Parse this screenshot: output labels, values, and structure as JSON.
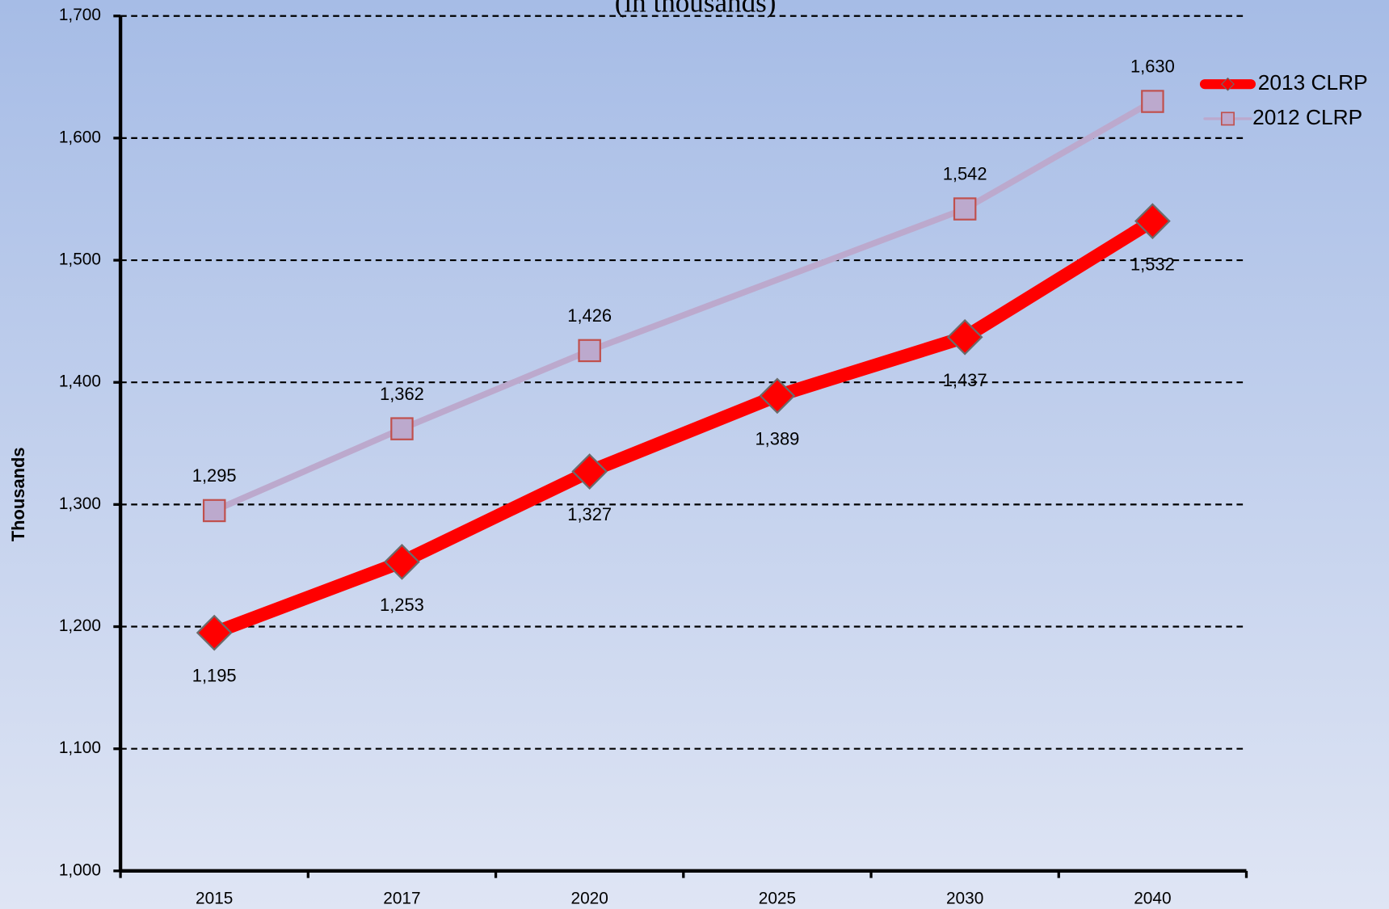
{
  "chart_data": {
    "type": "line",
    "title": "(in thousands)",
    "y_label": "Thousands",
    "categories": [
      "2015",
      "2017",
      "2020",
      "2025",
      "2030",
      "2040"
    ],
    "series": [
      {
        "name": "2013 CLRP",
        "color": "#ff0000",
        "marker": "diamond",
        "values": [
          1195,
          1253,
          1327,
          1389,
          1437,
          1532
        ],
        "value_labels": [
          "1,195",
          "1,253",
          "1,327",
          "1,389",
          "1,437",
          "1,532"
        ]
      },
      {
        "name": "2012 CLRP",
        "color": "#bca9cd",
        "marker": "square",
        "values": [
          1295,
          1362,
          1426,
          null,
          1542,
          1630
        ],
        "value_labels": [
          "1,295",
          "1,362",
          "1,426",
          null,
          "1,542",
          "1,630"
        ]
      }
    ],
    "ylim": [
      1000,
      1700
    ],
    "yticks": [
      {
        "value": 1000,
        "label": "1,000"
      },
      {
        "value": 1100,
        "label": "1,100"
      },
      {
        "value": 1200,
        "label": "1,200"
      },
      {
        "value": 1300,
        "label": "1,300"
      },
      {
        "value": 1400,
        "label": "1,400"
      },
      {
        "value": 1500,
        "label": "1,500"
      },
      {
        "value": 1600,
        "label": "1,600"
      },
      {
        "value": 1700,
        "label": "1,700"
      }
    ],
    "grid": true,
    "legend": "top-right"
  }
}
